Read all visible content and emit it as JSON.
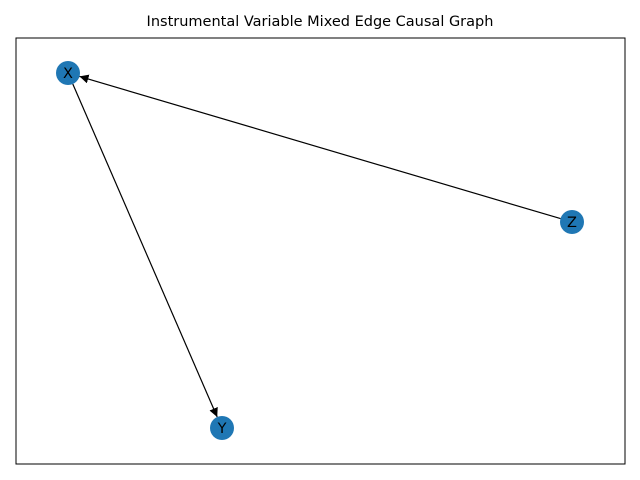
{
  "title": "Instrumental Variable Mixed Edge Causal Graph",
  "node_color": "#1f77b4",
  "edge_color": "#000000",
  "frame_color": "#000000",
  "nodes": [
    {
      "id": "X",
      "label": "X"
    },
    {
      "id": "Y",
      "label": "Y"
    },
    {
      "id": "Z",
      "label": "Z"
    }
  ],
  "edges": [
    {
      "from": "Z",
      "to": "X",
      "type": "directed"
    },
    {
      "from": "X",
      "to": "Y",
      "type": "directed"
    }
  ]
}
